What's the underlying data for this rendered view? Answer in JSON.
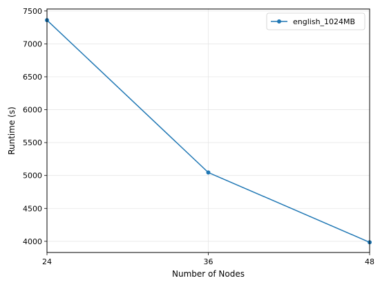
{
  "chart_data": {
    "type": "line",
    "title": "",
    "xlabel": "Number of Nodes",
    "ylabel": "Runtime (s)",
    "x": [
      24,
      36,
      48
    ],
    "xticks": [
      "24",
      "36",
      "48"
    ],
    "xlim": [
      24,
      48
    ],
    "yticks": [
      4000,
      4500,
      5000,
      5500,
      6000,
      6500,
      7000,
      7500
    ],
    "ylim": [
      3830,
      7530
    ],
    "grid": true,
    "legend_position": "top-right",
    "series": [
      {
        "name": "english_1024MB",
        "values": [
          7360,
          5045,
          3985
        ],
        "color": "#1f77b4",
        "marker": "circle"
      }
    ]
  }
}
